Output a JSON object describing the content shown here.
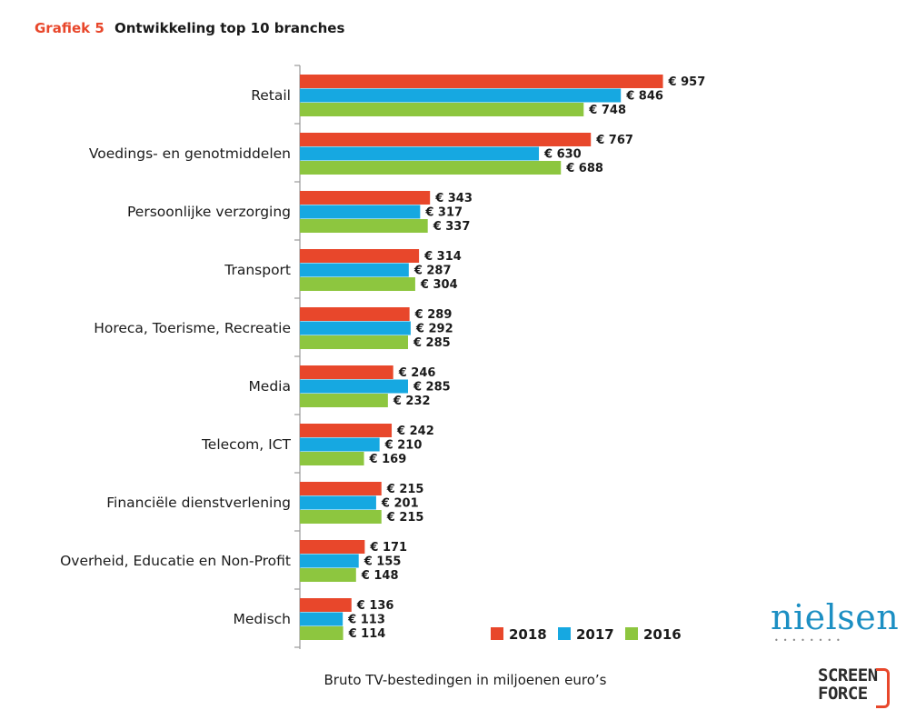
{
  "title": {
    "prefix": "Grafiek 5",
    "text": "Ontwikkeling top 10 branches"
  },
  "xlabel": "Bruto TV-bestedingen in miljoenen euro’s",
  "logos": {
    "nielsen": "nielsen",
    "screenforce_line1": "SCREEN",
    "screenforce_line2": "FORCE"
  },
  "colors": {
    "2018": "#e8472b",
    "2017": "#16a8e1",
    "2016": "#8dc63f",
    "title_accent": "#e8472b"
  },
  "chart_data": {
    "type": "bar",
    "orientation": "horizontal",
    "categories": [
      "Retail",
      "Voedings- en genotmiddelen",
      "Persoonlijke verzorging",
      "Transport",
      "Horeca, Toerisme, Recreatie",
      "Media",
      "Telecom, ICT",
      "Financiële dienstverlening",
      "Overheid, Educatie en Non-Profit",
      "Medisch"
    ],
    "series": [
      {
        "name": "2018",
        "values": [
          957,
          767,
          343,
          314,
          289,
          246,
          242,
          215,
          171,
          136
        ]
      },
      {
        "name": "2017",
        "values": [
          846,
          630,
          317,
          287,
          292,
          285,
          210,
          201,
          155,
          113
        ]
      },
      {
        "name": "2016",
        "values": [
          748,
          688,
          337,
          304,
          285,
          232,
          169,
          215,
          148,
          114
        ]
      }
    ],
    "value_prefix": "€ ",
    "legend_position": "bottom-right",
    "grid": false,
    "xlim": [
      0,
      1000
    ]
  }
}
